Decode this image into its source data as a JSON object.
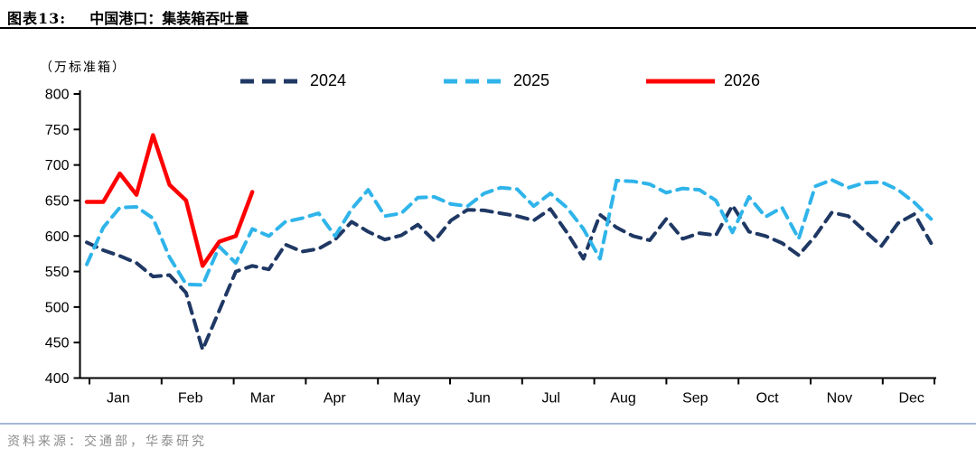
{
  "header": {
    "title_prefix": "图表13:",
    "title": "中国港口：集装箱吞吐量"
  },
  "footer": {
    "source": "资料来源：交通部，华泰研究"
  },
  "chart_data": {
    "type": "line",
    "title": "中国港口：集装箱吞吐量",
    "unit_label": "（万标准箱）",
    "frequency": "weekly",
    "grid": "off",
    "legend_position": "top",
    "y_axis": {
      "min": 400,
      "max": 800,
      "step": 50,
      "ticks": [
        800,
        750,
        700,
        650,
        600,
        550,
        500,
        450,
        400
      ]
    },
    "x_axis": {
      "months": [
        "Jan",
        "Feb",
        "Mar",
        "Apr",
        "May",
        "Jun",
        "Jul",
        "Aug",
        "Sep",
        "Oct",
        "Nov",
        "Dec"
      ]
    },
    "series": [
      {
        "name": "2024",
        "color": "#1F3864",
        "style": "dashed",
        "values": [
          591,
          580,
          572,
          562,
          543,
          545,
          520,
          440,
          495,
          550,
          558,
          553,
          588,
          578,
          582,
          595,
          620,
          606,
          595,
          601,
          616,
          593,
          622,
          637,
          636,
          632,
          628,
          622,
          638,
          605,
          568,
          630,
          612,
          600,
          594,
          624,
          596,
          604,
          601,
          643,
          606,
          600,
          590,
          573,
          600,
          633,
          628,
          607,
          586,
          618,
          631,
          590
        ]
      },
      {
        "name": "2025",
        "color": "#2FB4EA",
        "style": "dashed",
        "values": [
          560,
          612,
          640,
          641,
          625,
          570,
          532,
          531,
          585,
          562,
          610,
          600,
          620,
          625,
          632,
          600,
          638,
          665,
          628,
          632,
          654,
          655,
          645,
          642,
          660,
          668,
          666,
          642,
          660,
          640,
          610,
          568,
          678,
          677,
          673,
          661,
          667,
          665,
          650,
          605,
          655,
          627,
          640,
          596,
          670,
          679,
          668,
          675,
          676,
          665,
          647,
          624
        ]
      },
      {
        "name": "2026",
        "color": "#FF0000",
        "style": "solid",
        "values": [
          648,
          648,
          688,
          658,
          742,
          672,
          650,
          558,
          592,
          600,
          662
        ]
      }
    ]
  }
}
